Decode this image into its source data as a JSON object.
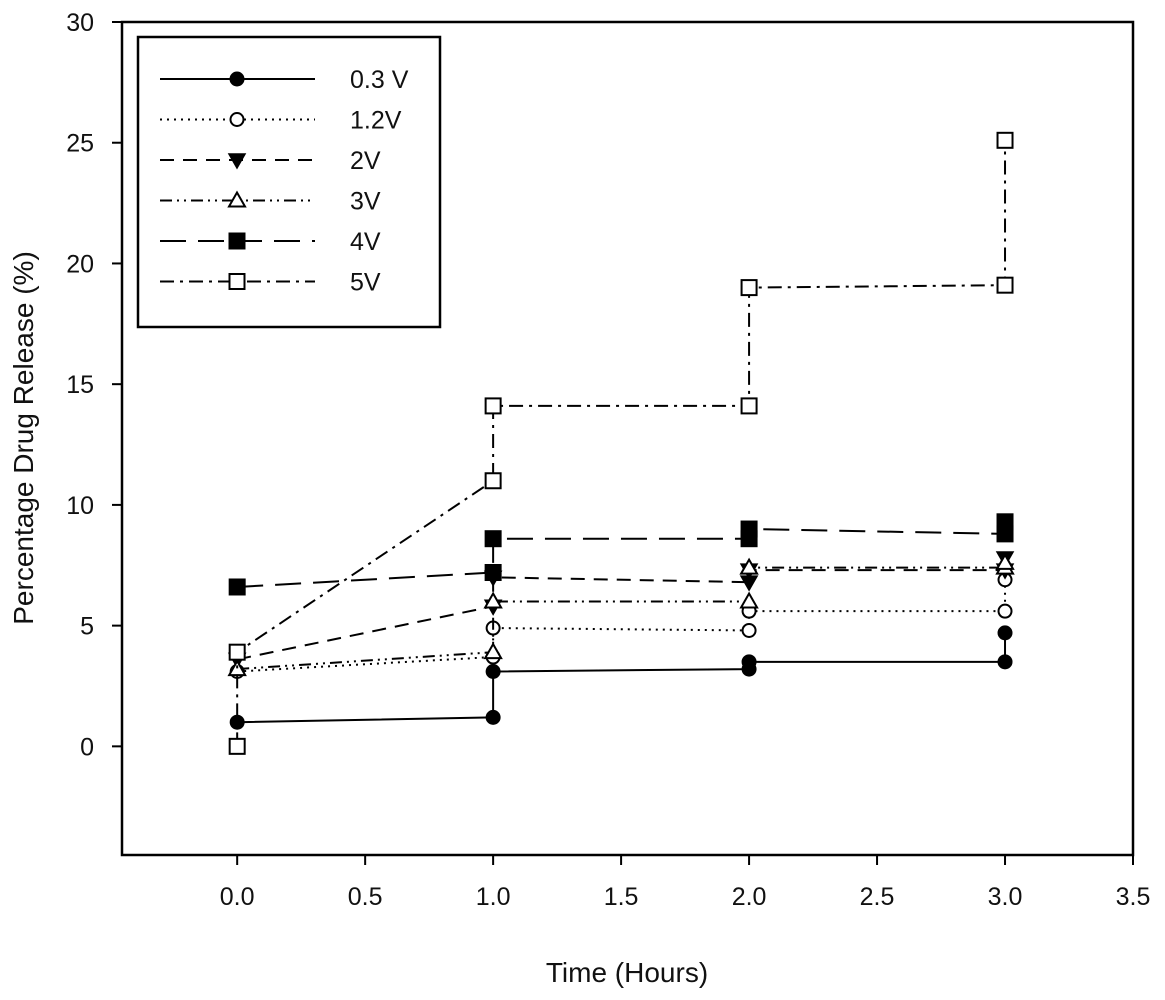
{
  "chart_data": {
    "type": "line",
    "title": "",
    "xlabel": "Time (Hours)",
    "ylabel": "Percentage Drug Release (%)",
    "xlim": [
      -0.45,
      3.5
    ],
    "ylim": [
      -4.5,
      30
    ],
    "xticks": [
      "0.0",
      "0.5",
      "1.0",
      "1.5",
      "2.0",
      "2.5",
      "3.0",
      "3.5"
    ],
    "xtick_values": [
      0,
      0.5,
      1,
      1.5,
      2,
      2.5,
      3,
      3.5
    ],
    "yticks": [
      "0",
      "5",
      "10",
      "15",
      "20",
      "25",
      "30"
    ],
    "ytick_values": [
      0,
      5,
      10,
      15,
      20,
      25,
      30
    ],
    "grid": false,
    "legend_position": "top-left",
    "series": [
      {
        "name": "0.3 V",
        "marker": "filled-circle",
        "dash": "solid",
        "points": [
          [
            0.0,
            1.0
          ],
          [
            1.0,
            1.2
          ],
          [
            1.0,
            3.1
          ],
          [
            2.0,
            3.2
          ],
          [
            2.0,
            3.5
          ],
          [
            3.0,
            3.5
          ],
          [
            3.0,
            4.7
          ]
        ]
      },
      {
        "name": "1.2V",
        "marker": "open-circle",
        "dash": "dotted",
        "points": [
          [
            0.0,
            3.1
          ],
          [
            1.0,
            3.7
          ],
          [
            1.0,
            4.9
          ],
          [
            2.0,
            4.8
          ],
          [
            2.0,
            5.6
          ],
          [
            3.0,
            5.6
          ],
          [
            3.0,
            6.9
          ]
        ]
      },
      {
        "name": "2V",
        "marker": "filled-triangle-down",
        "dash": "dashed",
        "points": [
          [
            0.0,
            3.6
          ],
          [
            1.0,
            5.8
          ],
          [
            1.0,
            7.0
          ],
          [
            2.0,
            6.8
          ],
          [
            2.0,
            7.3
          ],
          [
            3.0,
            7.3
          ],
          [
            3.0,
            7.8
          ]
        ]
      },
      {
        "name": "3V",
        "marker": "open-triangle-up",
        "dash": "dash-dot-dot",
        "points": [
          [
            0.0,
            3.2
          ],
          [
            1.0,
            3.9
          ],
          [
            1.0,
            6.0
          ],
          [
            2.0,
            6.0
          ],
          [
            2.0,
            7.4
          ],
          [
            3.0,
            7.4
          ],
          [
            3.0,
            7.6
          ]
        ]
      },
      {
        "name": "4V",
        "marker": "filled-square",
        "dash": "long-dash",
        "points": [
          [
            0.0,
            6.6
          ],
          [
            1.0,
            7.2
          ],
          [
            1.0,
            8.6
          ],
          [
            2.0,
            8.6
          ],
          [
            2.0,
            9.0
          ],
          [
            3.0,
            8.8
          ],
          [
            3.0,
            9.3
          ]
        ]
      },
      {
        "name": "5V",
        "marker": "open-square",
        "dash": "dash-dot",
        "points": [
          [
            0.0,
            0.0
          ],
          [
            0.0,
            3.9
          ],
          [
            1.0,
            11.0
          ],
          [
            1.0,
            14.1
          ],
          [
            2.0,
            14.1
          ],
          [
            2.0,
            19.0
          ],
          [
            3.0,
            19.1
          ],
          [
            3.0,
            25.1
          ]
        ]
      }
    ]
  }
}
